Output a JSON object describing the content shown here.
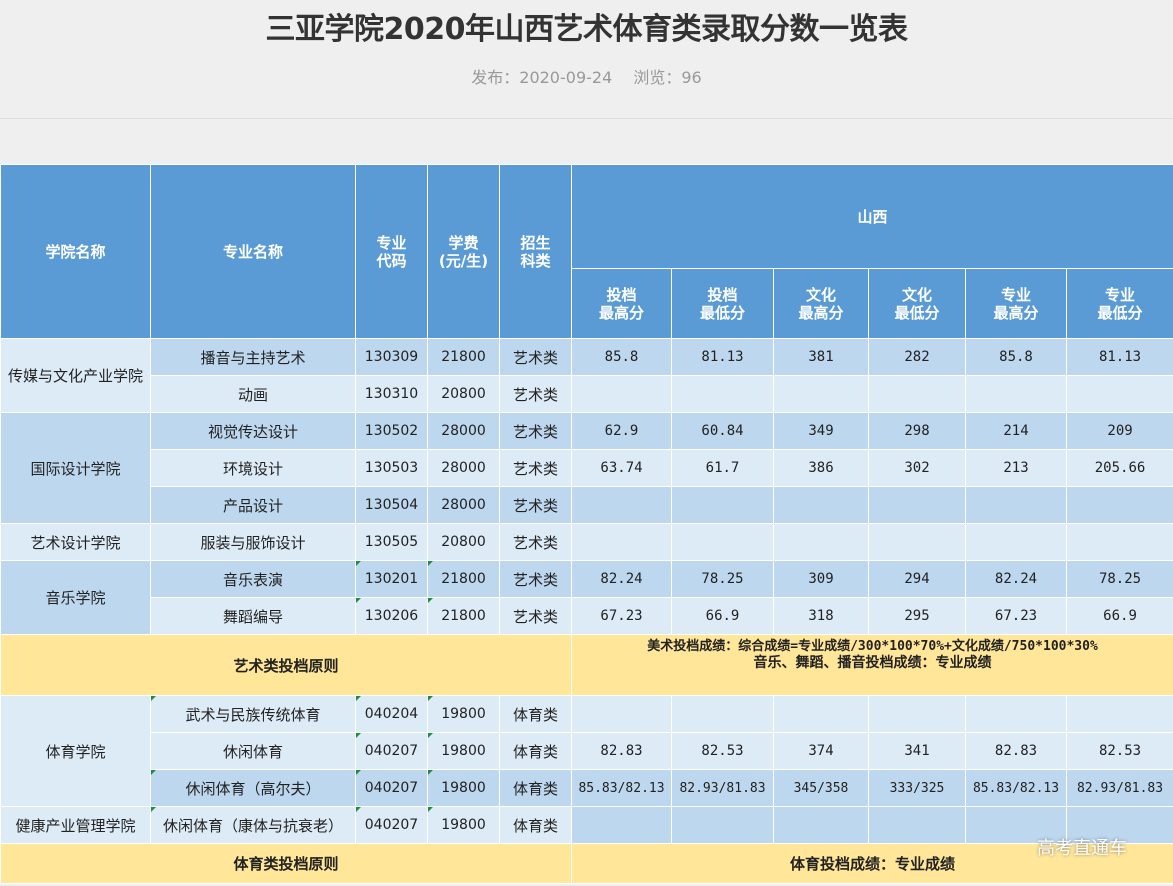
{
  "page": {
    "title": "三亚学院2020年山西艺术体育类录取分数一览表",
    "publish_label": "发布：2020-09-24",
    "views_label": "浏览：96"
  },
  "table": {
    "headers": {
      "college": "学院名称",
      "major": "专业名称",
      "code_line1": "专业",
      "code_line2": "代码",
      "fee_line1": "学费",
      "fee_line2": "(元/生)",
      "category_line1": "招生",
      "category_line2": "科类",
      "province": "山西",
      "subheaders": [
        [
          "投档",
          "最高分"
        ],
        [
          "投档",
          "最低分"
        ],
        [
          "文化",
          "最高分"
        ],
        [
          "文化",
          "最低分"
        ],
        [
          "专业",
          "最高分"
        ],
        [
          "专业",
          "最低分"
        ]
      ]
    },
    "colleges": {
      "media": "传媒与文化产业学院",
      "design": "国际设计学院",
      "art_design": "艺术设计学院",
      "music": "音乐学院",
      "sports": "体育学院",
      "health": "健康产业管理学院"
    },
    "rows": [
      {
        "major": "播音与主持艺术",
        "code": "130309",
        "fee": "21800",
        "cat": "艺术类",
        "s": [
          "85.8",
          "81.13",
          "381",
          "282",
          "85.8",
          "81.13"
        ]
      },
      {
        "major": "动画",
        "code": "130310",
        "fee": "20800",
        "cat": "艺术类",
        "s": [
          "",
          "",
          "",
          "",
          "",
          ""
        ]
      },
      {
        "major": "视觉传达设计",
        "code": "130502",
        "fee": "28000",
        "cat": "艺术类",
        "s": [
          "62.9",
          "60.84",
          "349",
          "298",
          "214",
          "209"
        ]
      },
      {
        "major": "环境设计",
        "code": "130503",
        "fee": "28000",
        "cat": "艺术类",
        "s": [
          "63.74",
          "61.7",
          "386",
          "302",
          "213",
          "205.66"
        ]
      },
      {
        "major": "产品设计",
        "code": "130504",
        "fee": "28000",
        "cat": "艺术类",
        "s": [
          "",
          "",
          "",
          "",
          "",
          ""
        ]
      },
      {
        "major": "服装与服饰设计",
        "code": "130505",
        "fee": "20800",
        "cat": "艺术类",
        "s": [
          "",
          "",
          "",
          "",
          "",
          ""
        ]
      },
      {
        "major": "音乐表演",
        "code": "130201",
        "fee": "21800",
        "cat": "艺术类",
        "s": [
          "82.24",
          "78.25",
          "309",
          "294",
          "82.24",
          "78.25"
        ]
      },
      {
        "major": "舞蹈编导",
        "code": "130206",
        "fee": "21800",
        "cat": "艺术类",
        "s": [
          "67.23",
          "66.9",
          "318",
          "295",
          "67.23",
          "66.9"
        ]
      },
      {
        "major": "武术与民族传统体育",
        "code": "040204",
        "fee": "19800",
        "cat": "体育类",
        "s": [
          "",
          "",
          "",
          "",
          "",
          ""
        ]
      },
      {
        "major": "休闲体育",
        "code": "040207",
        "fee": "19800",
        "cat": "体育类",
        "s": [
          "82.83",
          "82.53",
          "374",
          "341",
          "82.83",
          "82.53"
        ]
      },
      {
        "major": "休闲体育（高尔夫）",
        "code": "040207",
        "fee": "19800",
        "cat": "体育类",
        "s": [
          "85.83/82.13",
          "82.93/81.83",
          "345/358",
          "333/325",
          "85.83/82.13",
          "82.93/81.83"
        ]
      },
      {
        "major": "休闲体育（康体与抗衰老）",
        "code": "040207",
        "fee": "19800",
        "cat": "体育类",
        "s": [
          "",
          "",
          "",
          "",
          "",
          ""
        ]
      }
    ],
    "art_rule": {
      "label": "艺术类投档原则",
      "line1": "美术投档成绩：综合成绩=专业成绩/300*100*70%+文化成绩/750*100*30%",
      "line2": "音乐、舞蹈、播音投档成绩：专业成绩"
    },
    "sports_rule": {
      "label": "体育类投档原则",
      "text": "体育投档成绩：专业成绩"
    }
  },
  "watermark": "高考直通车"
}
